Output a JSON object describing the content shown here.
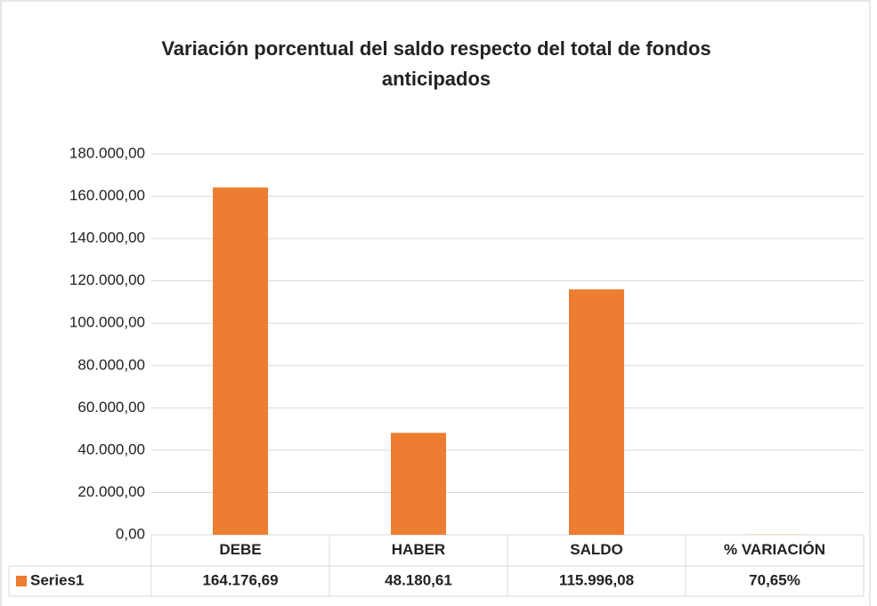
{
  "chart_data": {
    "type": "bar",
    "title": "Variación porcentual del saldo respecto del total de fondos anticipados",
    "categories": [
      "DEBE",
      "HABER",
      "SALDO",
      "% VARIACIÓN"
    ],
    "series": [
      {
        "name": "Series1",
        "color": "#ed7d31",
        "values": [
          164176.69,
          48180.61,
          115996.08,
          70.65
        ],
        "value_labels": [
          "164.176,69",
          "48.180,61",
          "115.996,08",
          "70,65%"
        ]
      }
    ],
    "ylim": [
      0,
      180000
    ],
    "yticks": [
      {
        "value": 0,
        "label": "0,00"
      },
      {
        "value": 20000,
        "label": "20.000,00"
      },
      {
        "value": 40000,
        "label": "40.000,00"
      },
      {
        "value": 60000,
        "label": "60.000,00"
      },
      {
        "value": 80000,
        "label": "80.000,00"
      },
      {
        "value": 100000,
        "label": "100.000,00"
      },
      {
        "value": 120000,
        "label": "120.000,00"
      },
      {
        "value": 140000,
        "label": "140.000,00"
      },
      {
        "value": 160000,
        "label": "160.000,00"
      },
      {
        "value": 180000,
        "label": "180.000,00"
      }
    ],
    "grid": true
  }
}
